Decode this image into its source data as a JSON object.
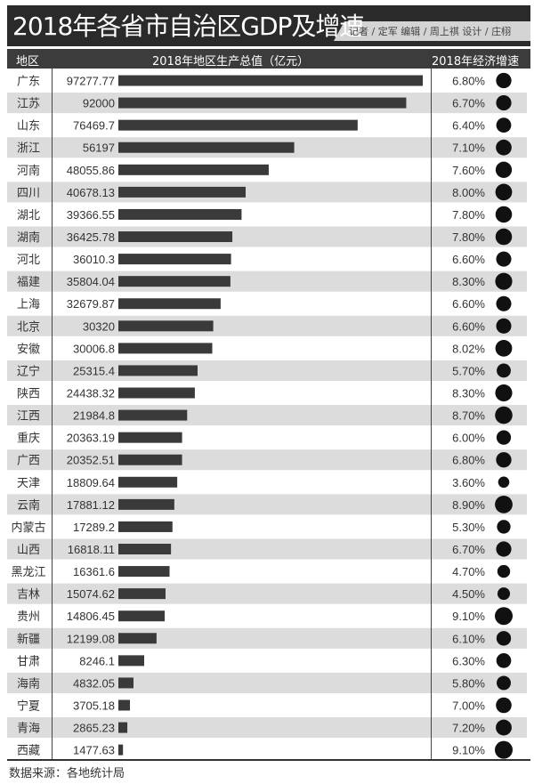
{
  "title": "2018年各省市自治区GDP及增速",
  "credits": "记者 / 定军   编辑 / 周上祺   设计 / 庄栩",
  "source": "数据来源：各地统计局",
  "chart_data": {
    "type": "bar",
    "headers": {
      "region": "地区",
      "gdp": "2018年地区生产总值（亿元）",
      "growth": "2018年经济增速"
    },
    "categories": [
      "广东",
      "江苏",
      "山东",
      "浙江",
      "河南",
      "四川",
      "湖北",
      "湖南",
      "河北",
      "福建",
      "上海",
      "北京",
      "安徽",
      "辽宁",
      "陕西",
      "江西",
      "重庆",
      "广西",
      "天津",
      "云南",
      "内蒙古",
      "山西",
      "黑龙江",
      "吉林",
      "贵州",
      "新疆",
      "甘肃",
      "海南",
      "宁夏",
      "青海",
      "西藏"
    ],
    "gdp_labels": [
      "97277.77",
      "92000",
      "76469.7",
      "56197",
      "48055.86",
      "40678.13",
      "39366.55",
      "36425.78",
      "36010.3",
      "35804.04",
      "32679.87",
      "30320",
      "30006.8",
      "25315.4",
      "24438.32",
      "21984.8",
      "20363.19",
      "20352.51",
      "18809.64",
      "17881.12",
      "17289.2",
      "16818.11",
      "16361.6",
      "15074.62",
      "14806.45",
      "12199.08",
      "8246.1",
      "4832.05",
      "3705.18",
      "2865.23",
      "1477.63"
    ],
    "growth_labels": [
      "6.80%",
      "6.70%",
      "6.40%",
      "7.10%",
      "7.60%",
      "8.00%",
      "7.80%",
      "7.80%",
      "6.60%",
      "8.30%",
      "6.60%",
      "6.60%",
      "8.02%",
      "5.70%",
      "8.30%",
      "8.70%",
      "6.00%",
      "6.80%",
      "3.60%",
      "8.90%",
      "5.30%",
      "6.70%",
      "4.70%",
      "4.50%",
      "9.10%",
      "6.10%",
      "6.30%",
      "5.80%",
      "7.00%",
      "7.20%",
      "9.10%"
    ],
    "colors": {
      "bar": "#3a3a3a",
      "circle": "#111111",
      "stripe": "#dcdcdc",
      "header": "#3c3c3c"
    }
  }
}
